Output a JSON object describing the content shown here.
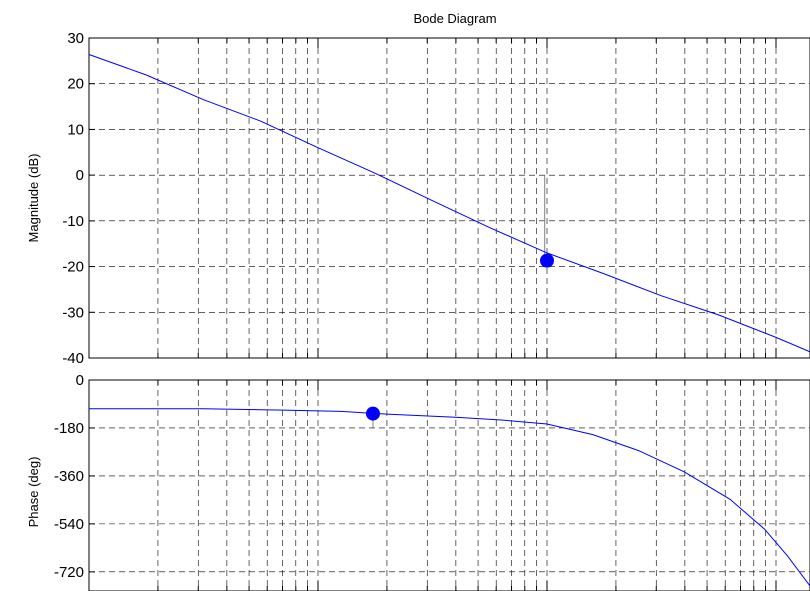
{
  "chart_data": {
    "title": "Bode Diagram",
    "type": "line",
    "x_scale": "log",
    "grid": true,
    "line_color": "#0000ff",
    "marker_color": "#0000ff",
    "panels": [
      {
        "id": "magnitude",
        "ylabel": "Magnitude (dB)",
        "ylim": [
          -40,
          30
        ],
        "yticks": [
          "30",
          "20",
          "10",
          "0",
          "-10",
          "-20",
          "-30",
          "-40"
        ],
        "ytick_values": [
          30,
          20,
          10,
          0,
          -10,
          -20,
          -30,
          -40
        ],
        "series": [
          {
            "log10_x": [
              0.0,
              0.25,
              0.5,
              0.75,
              1.0,
              1.25,
              1.5,
              1.75,
              2.0,
              2.25,
              2.5,
              2.75,
              3.0,
              3.165
            ],
            "y": [
              26.4,
              21.9,
              16.5,
              11.8,
              6.0,
              0.4,
              -5.6,
              -11.5,
              -17.0,
              -21.6,
              -26.4,
              -30.6,
              -35.5,
              -39.0
            ]
          }
        ],
        "marker": {
          "log10_x": 2.0,
          "y": -18.7
        },
        "crossover_line": {
          "log10_x": 1.99,
          "y_from": 0,
          "y_to": -18.7
        }
      },
      {
        "id": "phase",
        "ylabel": "Phase (deg)",
        "ylim": [
          -792,
          0
        ],
        "yticks": [
          "0",
          "-180",
          "-360",
          "-540",
          "-720"
        ],
        "ytick_values": [
          0,
          -180,
          -360,
          -540,
          -720
        ],
        "series": [
          {
            "log10_x": [
              0.0,
              0.5,
              0.85,
              1.1,
              1.3,
              1.6,
              1.8,
              2.0,
              2.2,
              2.4,
              2.6,
              2.8,
              2.95,
              3.05,
              3.15
            ],
            "y": [
              -108,
              -108,
              -113,
              -118,
              -128,
              -140,
              -150,
              -165,
              -205,
              -265,
              -345,
              -448,
              -560,
              -660,
              -775
            ]
          }
        ],
        "marker": {
          "log10_x": 1.24,
          "y": -126
        },
        "margin_line": {
          "log10_x": 1.24,
          "y_from": -126,
          "y_to": -180
        }
      }
    ]
  }
}
